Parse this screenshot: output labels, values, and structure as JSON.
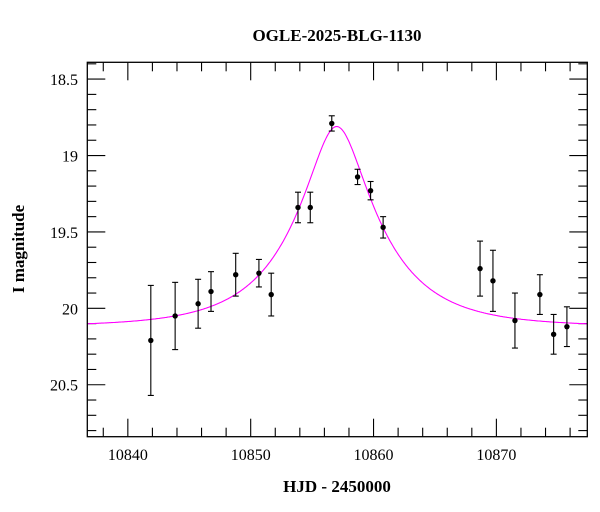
{
  "chart_data": {
    "type": "scatter",
    "title": "OGLE-2025-BLG-1130",
    "xlabel": "HJD - 2450000",
    "ylabel": "I magnitude",
    "xlim": [
      10836.7,
      10877.4
    ],
    "ylim": [
      18.39,
      20.84
    ],
    "y_inverted": true,
    "x_ticks": [
      10840,
      10850,
      10860,
      10870
    ],
    "x_tick_labels": [
      "10840",
      "10850",
      "10860",
      "10870"
    ],
    "x_minor_step": 2,
    "y_ticks": [
      18.5,
      19,
      19.5,
      20,
      20.5
    ],
    "y_tick_labels": [
      "18.5",
      "19",
      "19.5",
      "20",
      "20.5"
    ],
    "y_minor_step": 0.1,
    "grid": false,
    "series": [
      {
        "type": "errorbar",
        "color": "#000000",
        "x": [
          10841.87,
          10843.85,
          10845.72,
          10846.77,
          10848.78,
          10850.67,
          10851.67,
          10853.85,
          10854.85,
          10856.6,
          10858.7,
          10859.76,
          10860.78,
          10868.67,
          10869.72,
          10871.51,
          10873.54,
          10874.66,
          10875.74
        ],
        "y": [
          20.21,
          20.05,
          19.97,
          19.89,
          19.78,
          19.77,
          19.91,
          19.34,
          19.34,
          18.79,
          19.14,
          19.23,
          19.47,
          19.74,
          19.82,
          20.08,
          19.91,
          20.17,
          20.12
        ],
        "yerr": [
          0.36,
          0.22,
          0.16,
          0.13,
          0.14,
          0.09,
          0.14,
          0.1,
          0.1,
          0.05,
          0.05,
          0.06,
          0.07,
          0.18,
          0.2,
          0.18,
          0.13,
          0.13,
          0.13
        ]
      },
      {
        "type": "model-curve",
        "color": "#ff00ff",
        "model": "point-lens",
        "t0": 10857.0,
        "u0": 0.31,
        "tE": 6.9,
        "baseline_mag": 20.12
      }
    ]
  }
}
